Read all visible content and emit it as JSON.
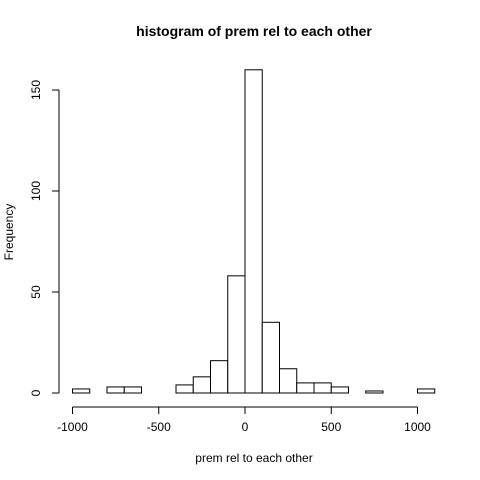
{
  "chart_data": {
    "type": "bar",
    "title": "histogram of prem rel to each other",
    "xlabel": "prem rel to each other",
    "ylabel": "Frequency",
    "bins": [
      {
        "start": -1000,
        "end": -900,
        "count": 2
      },
      {
        "start": -900,
        "end": -800,
        "count": 0
      },
      {
        "start": -800,
        "end": -700,
        "count": 3
      },
      {
        "start": -700,
        "end": -600,
        "count": 3
      },
      {
        "start": -600,
        "end": -500,
        "count": 0
      },
      {
        "start": -500,
        "end": -400,
        "count": 0
      },
      {
        "start": -400,
        "end": -300,
        "count": 4
      },
      {
        "start": -300,
        "end": -200,
        "count": 8
      },
      {
        "start": -200,
        "end": -100,
        "count": 16
      },
      {
        "start": -100,
        "end": 0,
        "count": 58
      },
      {
        "start": 0,
        "end": 100,
        "count": 160
      },
      {
        "start": 100,
        "end": 200,
        "count": 35
      },
      {
        "start": 200,
        "end": 300,
        "count": 12
      },
      {
        "start": 300,
        "end": 400,
        "count": 5
      },
      {
        "start": 400,
        "end": 500,
        "count": 5
      },
      {
        "start": 500,
        "end": 600,
        "count": 3
      },
      {
        "start": 600,
        "end": 700,
        "count": 0
      },
      {
        "start": 700,
        "end": 800,
        "count": 1
      },
      {
        "start": 800,
        "end": 900,
        "count": 0
      },
      {
        "start": 900,
        "end": 1000,
        "count": 0
      },
      {
        "start": 1000,
        "end": 1100,
        "count": 2
      }
    ],
    "x_ticks": [
      {
        "value": -1000,
        "label": "-1000"
      },
      {
        "value": -500,
        "label": "-500"
      },
      {
        "value": 0,
        "label": "0"
      },
      {
        "value": 500,
        "label": "500"
      },
      {
        "value": 1000,
        "label": "1000"
      }
    ],
    "y_ticks": [
      {
        "value": 0,
        "label": "0"
      },
      {
        "value": 50,
        "label": "50"
      },
      {
        "value": 100,
        "label": "100"
      },
      {
        "value": 150,
        "label": "150"
      }
    ],
    "xlim": [
      -1000,
      1100
    ],
    "ylim": [
      0,
      160
    ],
    "grid": false,
    "legend": "none",
    "bar_fill": "#ffffff",
    "bar_stroke": "#000000"
  }
}
